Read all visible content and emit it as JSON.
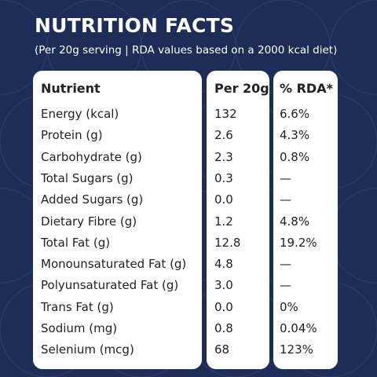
{
  "header": {
    "title": "NUTRITION FACTS",
    "subtitle": "(Per 20g serving | RDA values based on a 2000 kcal diet)"
  },
  "table": {
    "columns": [
      "Nutrient",
      "Per 20g",
      "% RDA*"
    ],
    "rows": [
      [
        "Energy (kcal)",
        "132",
        "6.6%"
      ],
      [
        "Protein (g)",
        "2.6",
        "4.3%"
      ],
      [
        "Carbohydrate (g)",
        "2.3",
        "0.8%"
      ],
      [
        "Total Sugars (g)",
        "0.3",
        "—"
      ],
      [
        "Added Sugars (g)",
        "0.0",
        "—"
      ],
      [
        "Dietary Fibre (g)",
        "1.2",
        "4.8%"
      ],
      [
        "Total Fat (g)",
        "12.8",
        "19.2%"
      ],
      [
        "Monounsaturated Fat (g)",
        "4.8",
        "—"
      ],
      [
        "Polyunsaturated Fat (g)",
        "3.0",
        "—"
      ],
      [
        "Trans Fat (g)",
        "0.0",
        "0%"
      ],
      [
        "Sodium (mg)",
        "0.8",
        "0.04%"
      ],
      [
        "Selenium (mcg)",
        "68",
        "123%"
      ]
    ]
  }
}
